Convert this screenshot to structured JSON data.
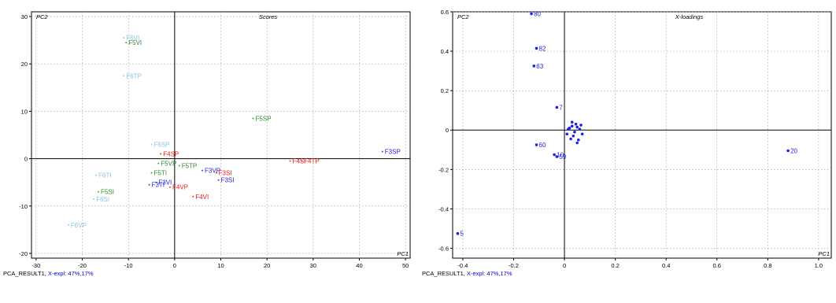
{
  "scores": {
    "title": "Scores",
    "x_axis_label": "PC1",
    "y_axis_label": "PC2",
    "caption_prefix": "PCA_RESULT1,",
    "caption_explained": "X-expl: 47%,17%"
  },
  "loadings": {
    "title": "X-loadings",
    "x_axis_label": "PC1",
    "y_axis_label": "PC2",
    "caption_prefix": "PCA_RESULT1,",
    "caption_explained": "X-expl: 47%,17%"
  },
  "colors": {
    "red": "#e41a1c",
    "green": "#2e8b2e",
    "blue": "#1f1fd6",
    "lightblue": "#8cc4e6",
    "loading_blue": "#1f1fe8"
  },
  "chart_data": [
    {
      "type": "scatter",
      "title": "Scores",
      "xlabel": "PC1",
      "ylabel": "PC2",
      "xlim": [
        -31,
        51
      ],
      "ylim": [
        -21,
        31
      ],
      "xticks": [
        -30,
        -20,
        -10,
        0,
        10,
        20,
        30,
        40,
        50
      ],
      "yticks": [
        -20,
        -10,
        0,
        10,
        20,
        30
      ],
      "grid": true,
      "points": [
        {
          "label": "F6VI",
          "x": -11,
          "y": 25.5,
          "color": "lightblue"
        },
        {
          "label": "F5VI",
          "x": -10.5,
          "y": 24.5,
          "color": "green"
        },
        {
          "label": "F6TP",
          "x": -11,
          "y": 17.5,
          "color": "lightblue"
        },
        {
          "label": "F5SP",
          "x": 17,
          "y": 8.5,
          "color": "green"
        },
        {
          "label": "F3SP",
          "x": 45,
          "y": 1.5,
          "color": "blue"
        },
        {
          "label": "F6SP",
          "x": -5,
          "y": 3,
          "color": "lightblue"
        },
        {
          "label": "F4SP",
          "x": -3,
          "y": 1,
          "color": "red"
        },
        {
          "label": "F4SI",
          "x": 25,
          "y": -0.5,
          "color": "red"
        },
        {
          "label": "F4TP",
          "x": 27.5,
          "y": -0.5,
          "color": "red"
        },
        {
          "label": "F5VP",
          "x": -3.5,
          "y": -1,
          "color": "green"
        },
        {
          "label": "F5TP",
          "x": 1,
          "y": -1.5,
          "color": "green"
        },
        {
          "label": "F3VP",
          "x": 6,
          "y": -2.5,
          "color": "blue"
        },
        {
          "label": "F3SI",
          "x": 9,
          "y": -3,
          "color": "red"
        },
        {
          "label": "F3SI",
          "x": 9.5,
          "y": -4.5,
          "color": "blue"
        },
        {
          "label": "F5TI",
          "x": -5,
          "y": -3,
          "color": "green"
        },
        {
          "label": "F6TI",
          "x": -17,
          "y": -3.5,
          "color": "lightblue"
        },
        {
          "label": "F3VI",
          "x": -4,
          "y": -5,
          "color": "blue"
        },
        {
          "label": "F3TI",
          "x": -5.5,
          "y": -5.5,
          "color": "blue"
        },
        {
          "label": "F4VP",
          "x": -1,
          "y": -6,
          "color": "red"
        },
        {
          "label": "F4VI",
          "x": 4,
          "y": -8,
          "color": "red"
        },
        {
          "label": "F5SI",
          "x": -16.5,
          "y": -7,
          "color": "green"
        },
        {
          "label": "F6SI",
          "x": -17.5,
          "y": -8.5,
          "color": "lightblue"
        },
        {
          "label": "F6VP",
          "x": -23,
          "y": -14,
          "color": "lightblue"
        }
      ]
    },
    {
      "type": "scatter",
      "title": "X-loadings",
      "xlabel": "PC1",
      "ylabel": "PC2",
      "xlim": [
        -0.44,
        1.05
      ],
      "ylim": [
        -0.65,
        0.6
      ],
      "xticks": [
        -0.4,
        -0.2,
        0,
        0.2,
        0.4,
        0.6,
        0.8,
        1.0
      ],
      "xtick_labels": [
        "-0.4",
        "-0.2",
        "0",
        "0.2",
        "0.4",
        "0.6",
        "0.8",
        "1.0"
      ],
      "yticks": [
        -0.6,
        -0.4,
        -0.2,
        0,
        0.2,
        0.4,
        0.6
      ],
      "ytick_labels": [
        "-0.6",
        "-0.4",
        "-0.2",
        "0",
        "0.2",
        "0.4",
        "0.6"
      ],
      "grid": true,
      "points": [
        {
          "label": "80",
          "x": -0.13,
          "y": 0.59
        },
        {
          "label": "82",
          "x": -0.11,
          "y": 0.415
        },
        {
          "label": "63",
          "x": -0.12,
          "y": 0.325
        },
        {
          "label": "7",
          "x": -0.03,
          "y": 0.115
        },
        {
          "label": "60",
          "x": -0.11,
          "y": -0.075
        },
        {
          "label": "10",
          "x": -0.04,
          "y": -0.125
        },
        {
          "label": "59",
          "x": -0.03,
          "y": -0.135
        },
        {
          "label": "20",
          "x": 0.88,
          "y": -0.105
        },
        {
          "label": "5",
          "x": -0.42,
          "y": -0.525
        },
        {
          "label": "",
          "x": 0.02,
          "y": 0.01
        },
        {
          "label": "",
          "x": 0.03,
          "y": 0.02
        },
        {
          "label": "",
          "x": 0.04,
          "y": -0.01
        },
        {
          "label": "",
          "x": 0.05,
          "y": 0.015
        },
        {
          "label": "",
          "x": 0.06,
          "y": 0.005
        },
        {
          "label": "",
          "x": 0.035,
          "y": -0.03
        },
        {
          "label": "",
          "x": 0.07,
          "y": -0.02
        },
        {
          "label": "",
          "x": 0.045,
          "y": 0.03
        },
        {
          "label": "",
          "x": 0.025,
          "y": -0.045
        },
        {
          "label": "",
          "x": 0.055,
          "y": -0.05
        },
        {
          "label": "",
          "x": 0.015,
          "y": 0.005
        },
        {
          "label": "",
          "x": 0.065,
          "y": 0.025
        },
        {
          "label": "",
          "x": 0.01,
          "y": -0.02
        },
        {
          "label": "",
          "x": 0.05,
          "y": -0.065
        },
        {
          "label": "",
          "x": 0.03,
          "y": 0.04
        }
      ]
    }
  ]
}
